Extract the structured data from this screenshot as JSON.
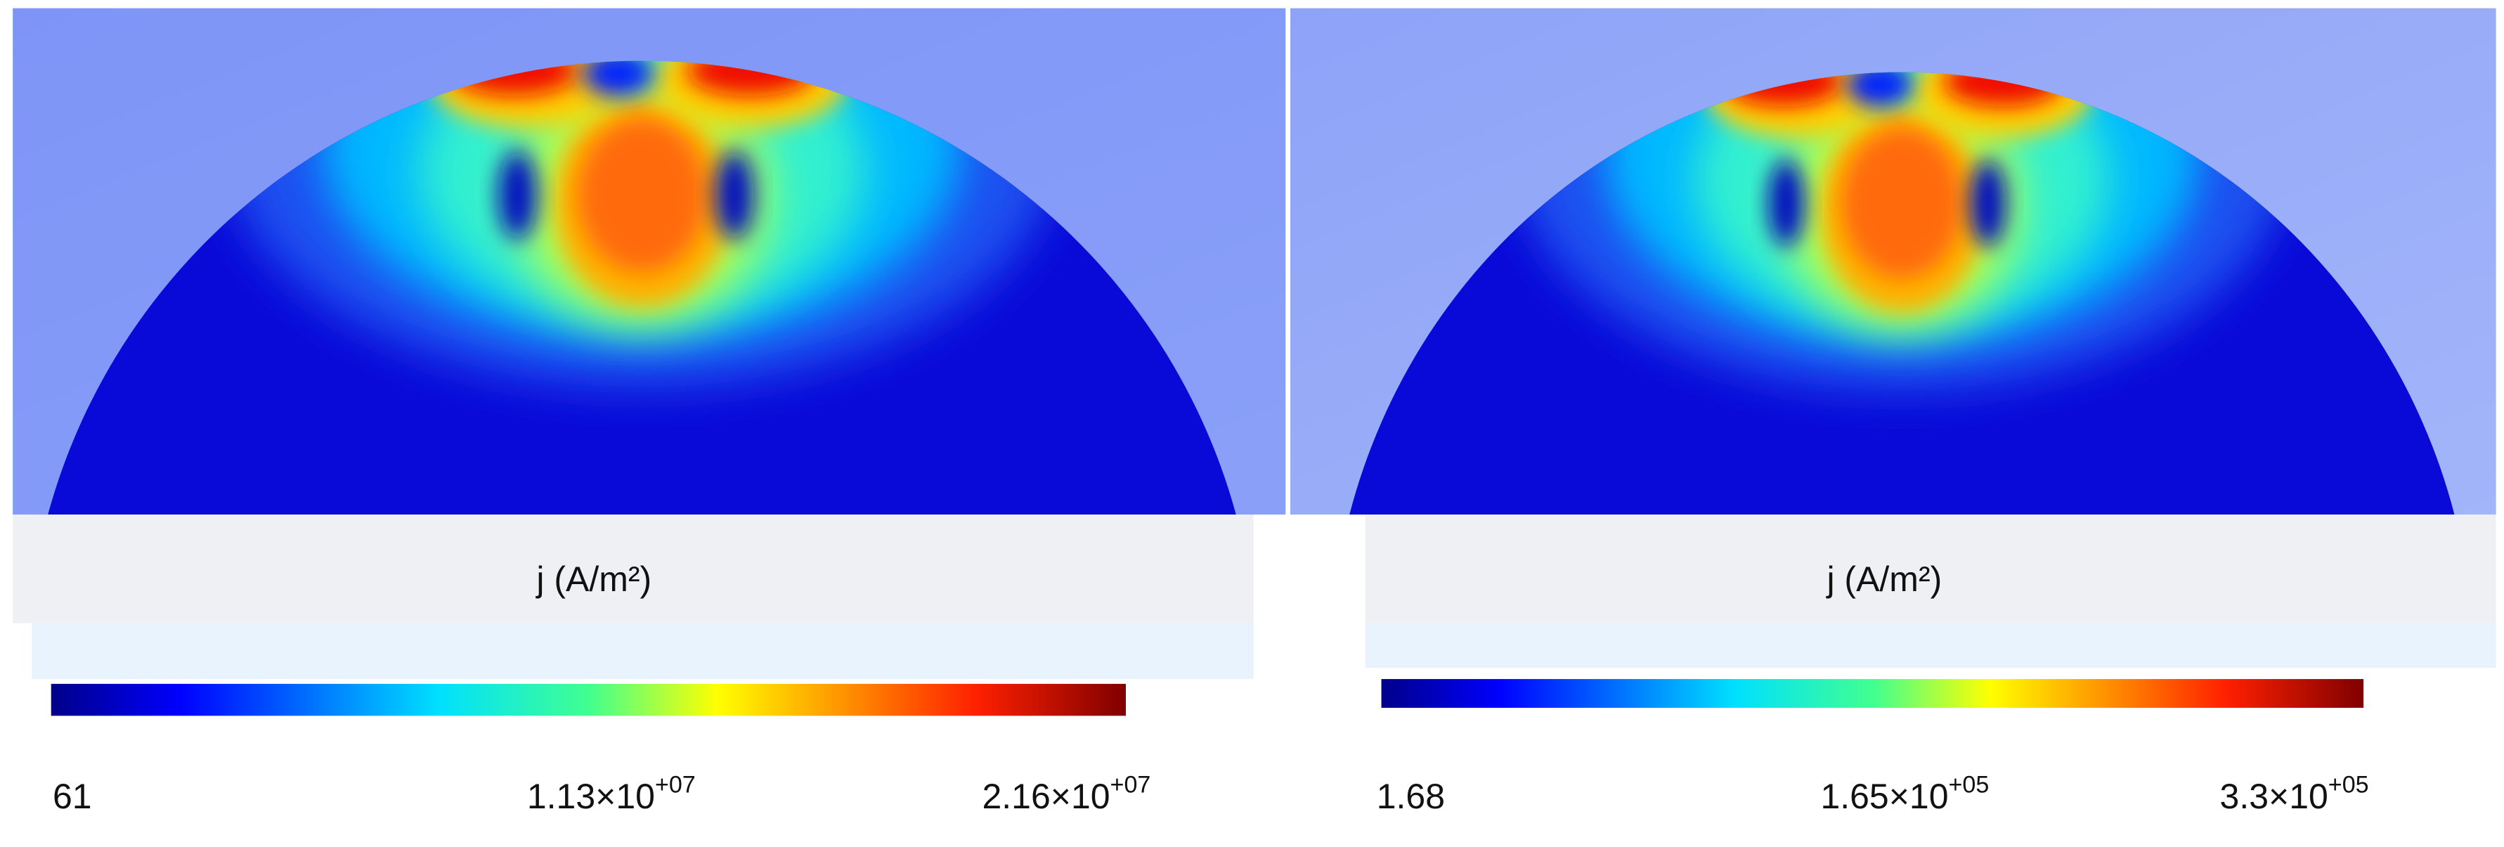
{
  "panels": [
    {
      "colorbar": {
        "label": "j (A/m²)",
        "ticks": [
          {
            "text": "61"
          },
          {
            "text": "1.13×10",
            "sup": "+07"
          },
          {
            "text": "2.16×10",
            "sup": "+07"
          }
        ]
      }
    },
    {
      "colorbar": {
        "label": "j (A/m²)",
        "ticks": [
          {
            "text": "1.68"
          },
          {
            "text": "1.65×10",
            "sup": "+05"
          },
          {
            "text": "3.3×10",
            "sup": "+05"
          }
        ]
      }
    }
  ]
}
